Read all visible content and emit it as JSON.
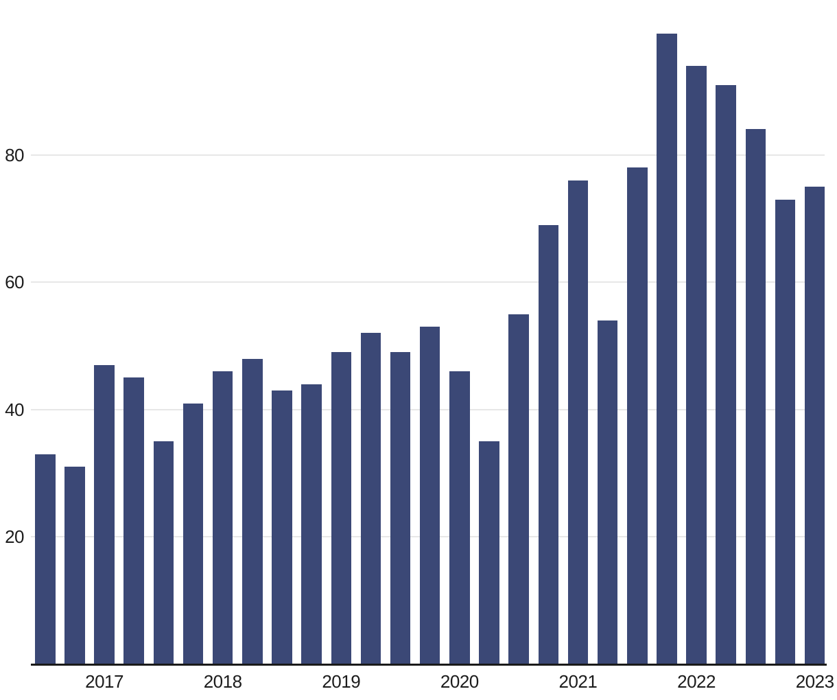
{
  "chart_data": {
    "type": "bar",
    "title": "",
    "xlabel": "",
    "ylabel": "",
    "x": [
      "2016-Q3",
      "2016-Q4",
      "2017-Q1",
      "2017-Q2",
      "2017-Q3",
      "2017-Q4",
      "2018-Q1",
      "2018-Q2",
      "2018-Q3",
      "2018-Q4",
      "2019-Q1",
      "2019-Q2",
      "2019-Q3",
      "2019-Q4",
      "2020-Q1",
      "2020-Q2",
      "2020-Q3",
      "2020-Q4",
      "2021-Q1",
      "2021-Q2",
      "2021-Q3",
      "2021-Q4",
      "2022-Q1",
      "2022-Q2",
      "2022-Q3",
      "2022-Q4",
      "2023-Q1"
    ],
    "values": [
      33,
      31,
      47,
      45,
      35,
      41,
      46,
      48,
      43,
      44,
      49,
      52,
      49,
      53,
      46,
      35,
      55,
      69,
      76,
      54,
      78,
      99,
      94,
      91,
      84,
      73,
      75
    ],
    "x_tick_labels": [
      "2017",
      "2018",
      "2019",
      "2020",
      "2021",
      "2022",
      "2023"
    ],
    "x_tick_bar_indices": [
      2,
      6,
      10,
      14,
      18,
      22,
      26
    ],
    "y_ticks": [
      20,
      40,
      60,
      80
    ],
    "ylim": [
      0,
      104
    ],
    "grid": "horizontal-only",
    "legend": "none",
    "colors": {
      "bar": "#3b4876",
      "gridline": "#e7e7e7",
      "axis": "#1a1a1a",
      "tick_text": "#1c1c1c",
      "background": "#ffffff"
    }
  }
}
